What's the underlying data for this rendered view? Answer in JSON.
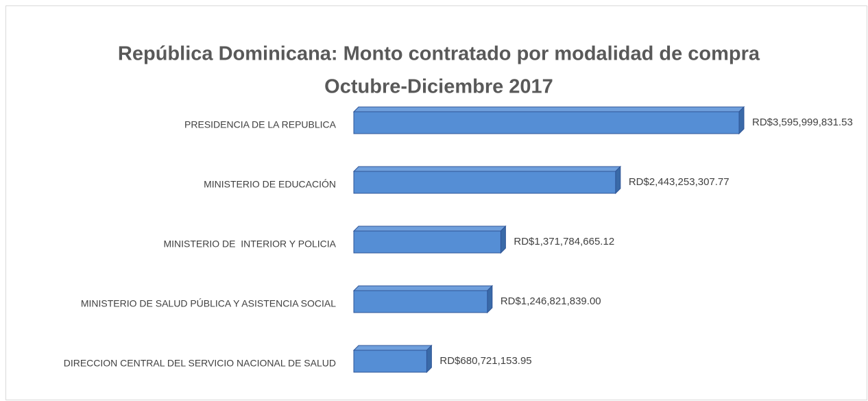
{
  "chart_data": {
    "type": "bar3d-horizontal",
    "title": "República Dominicana: Monto contratado por modalidad de compra",
    "subtitle": "Octubre-Diciembre 2017",
    "categories": [
      "PRESIDENCIA DE LA REPUBLICA",
      "MINISTERIO DE EDUCACIÓN",
      "MINISTERIO DE  INTERIOR Y POLICIA",
      "MINISTERIO DE SALUD PÚBLICA Y ASISTENCIA SOCIAL",
      "DIRECCION CENTRAL DEL SERVICIO NACIONAL DE SALUD"
    ],
    "values": [
      3595999831.53,
      2443253307.77,
      1371784665.12,
      1246821839.0,
      680721153.95
    ],
    "value_labels": [
      "RD$3,595,999,831.53",
      "RD$2,443,253,307.77",
      "RD$1,371,784,665.12",
      "RD$1,246,821,839.00",
      "RD$680,721,153.95"
    ],
    "color": "#558ed5"
  }
}
